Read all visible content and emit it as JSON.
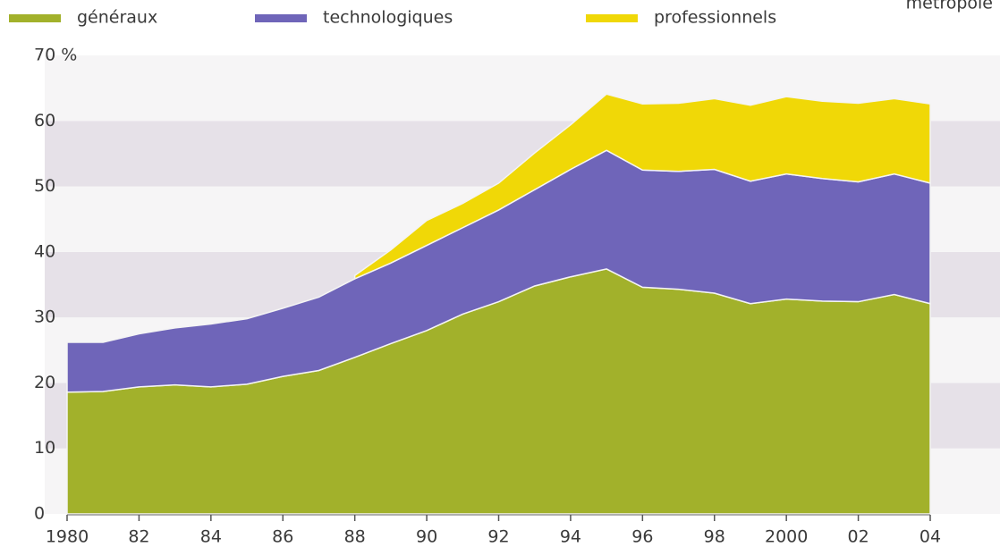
{
  "chart_data": {
    "type": "stacked-area",
    "annotation": "métropole",
    "x": [
      1980,
      1981,
      1982,
      1983,
      1984,
      1985,
      1986,
      1987,
      1988,
      1989,
      1990,
      1991,
      1992,
      1993,
      1994,
      1995,
      1996,
      1997,
      1998,
      1999,
      2000,
      2001,
      2002,
      2003,
      2004
    ],
    "series": [
      {
        "name": "généraux",
        "color": "#a2b12b",
        "values": [
          18.6,
          18.7,
          19.4,
          19.7,
          19.4,
          19.8,
          21.0,
          21.9,
          23.9,
          26.0,
          28.0,
          30.5,
          32.4,
          34.8,
          36.2,
          37.4,
          34.6,
          34.3,
          33.7,
          32.1,
          32.8,
          32.5,
          32.4,
          33.5,
          32.1
        ]
      },
      {
        "name": "technologiques",
        "color": "#6f65b9",
        "values": [
          7.6,
          7.5,
          8.1,
          8.7,
          9.6,
          10.0,
          10.4,
          11.2,
          12.0,
          12.3,
          13.0,
          13.2,
          14.0,
          14.7,
          16.4,
          18.1,
          17.9,
          18.0,
          18.9,
          18.7,
          19.1,
          18.7,
          18.3,
          18.4,
          18.4
        ]
      },
      {
        "name": "professionnels",
        "color": "#f0d807",
        "values": [
          null,
          null,
          null,
          null,
          null,
          null,
          null,
          null,
          0.5,
          2.0,
          3.8,
          3.7,
          4.1,
          5.6,
          6.8,
          8.6,
          10.1,
          10.4,
          10.8,
          11.6,
          11.8,
          11.8,
          12.0,
          11.5,
          12.1
        ]
      }
    ],
    "xlim": [
      1980,
      2004
    ],
    "xticks": [
      1980,
      {
        "value": 1982,
        "label": "82"
      },
      {
        "value": 1984,
        "label": "84"
      },
      {
        "value": 1986,
        "label": "86"
      },
      {
        "value": 1988,
        "label": "88"
      },
      {
        "value": 1990,
        "label": "90"
      },
      {
        "value": 1992,
        "label": "92"
      },
      {
        "value": 1994,
        "label": "94"
      },
      {
        "value": 1996,
        "label": "96"
      },
      {
        "value": 1998,
        "label": "98"
      },
      2000,
      {
        "value": 2002,
        "label": "02"
      },
      {
        "value": 2004,
        "label": "04"
      }
    ],
    "ylim": [
      0,
      70
    ],
    "yticks": [
      0,
      10,
      20,
      30,
      40,
      50,
      60,
      {
        "value": 70,
        "label": "70 %"
      }
    ],
    "grid": "bands"
  }
}
